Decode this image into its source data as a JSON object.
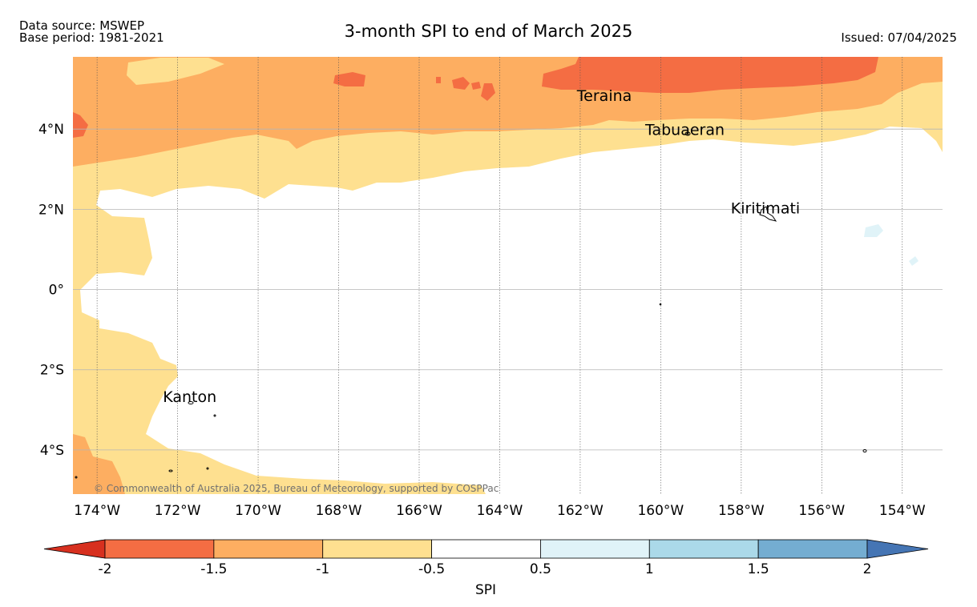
{
  "header": {
    "data_source": "Data source: MSWEP",
    "base_period": "Base period: 1981-2021",
    "title": "3-month SPI to end of March 2025",
    "issued": "Issued: 07/04/2025"
  },
  "map": {
    "extent": {
      "lon_min": -174.6,
      "lon_max": -153.0,
      "lat_min": -5.1,
      "lat_max": 5.8
    },
    "lat_ticks": [
      {
        "value": 4,
        "label": "4°N"
      },
      {
        "value": 2,
        "label": "2°N"
      },
      {
        "value": 0,
        "label": "0°"
      },
      {
        "value": -2,
        "label": "2°S"
      },
      {
        "value": -4,
        "label": "4°S"
      }
    ],
    "lon_ticks": [
      {
        "value": -174,
        "label": "174°W"
      },
      {
        "value": -172,
        "label": "172°W"
      },
      {
        "value": -170,
        "label": "170°W"
      },
      {
        "value": -168,
        "label": "168°W"
      },
      {
        "value": -166,
        "label": "166°W"
      },
      {
        "value": -164,
        "label": "164°W"
      },
      {
        "value": -162,
        "label": "162°W"
      },
      {
        "value": -160,
        "label": "160°W"
      },
      {
        "value": -158,
        "label": "158°W"
      },
      {
        "value": -156,
        "label": "156°W"
      },
      {
        "value": -154,
        "label": "154°W"
      }
    ],
    "places": [
      {
        "name": "Teraina",
        "lon": -161.4,
        "lat": 4.7
      },
      {
        "name": "Tabuaeran",
        "lon": -159.4,
        "lat": 3.85
      },
      {
        "name": "Kiritimati",
        "lon": -157.4,
        "lat": 1.9
      },
      {
        "name": "Kanton",
        "lon": -171.7,
        "lat": -2.8
      }
    ],
    "copyright": "© Commonwealth of Australia 2025, Bureau of Meteorology, supported by COSPPac"
  },
  "colorbar": {
    "label": "SPI",
    "tick_labels": [
      "-2",
      "-1.5",
      "-1",
      "-0.5",
      "0.5",
      "1",
      "1.5",
      "2"
    ],
    "bins": [
      {
        "range": "< -2",
        "color": "#d7301f"
      },
      {
        "range": "-2 to -1.5",
        "color": "#f46d43"
      },
      {
        "range": "-1.5 to -1",
        "color": "#fdae61"
      },
      {
        "range": "-1 to -0.5",
        "color": "#fee090"
      },
      {
        "range": "-0.5 to 0.5",
        "color": "#ffffff"
      },
      {
        "range": "0.5 to 1",
        "color": "#e0f3f8"
      },
      {
        "range": "1 to 1.5",
        "color": "#abd9e9"
      },
      {
        "range": "1.5 to 2",
        "color": "#74add1"
      },
      {
        "range": "> 2",
        "color": "#4575b4"
      }
    ]
  }
}
